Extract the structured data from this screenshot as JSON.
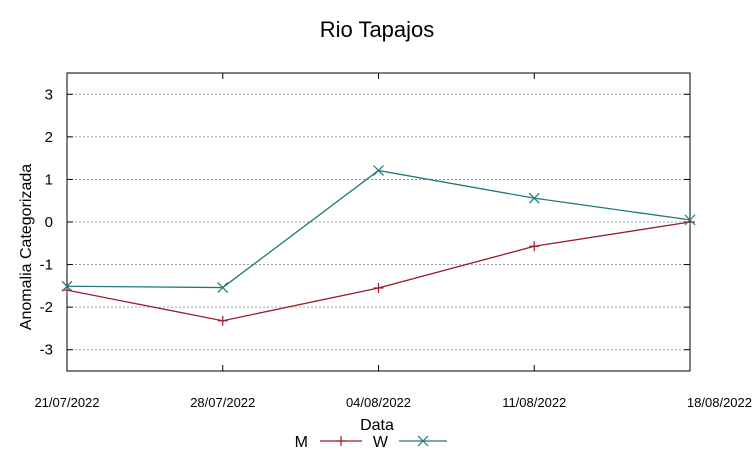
{
  "chart_data": {
    "type": "line",
    "title": "Rio Tapajos",
    "xlabel": "Data",
    "ylabel": "Anomalia Categorizada",
    "categories": [
      "21/07/2022",
      "28/07/2022",
      "04/08/2022",
      "11/08/2022",
      "18/08/2022"
    ],
    "ylim": [
      -3.5,
      3.5
    ],
    "yticks": [
      "3",
      "2",
      "1",
      "0",
      "-1",
      "-2",
      "-3"
    ],
    "grid": true,
    "legend_position": "bottom",
    "series": [
      {
        "name": "M",
        "values": [
          -1.6,
          -2.32,
          -1.55,
          -0.57,
          0.0
        ],
        "color": "#9b1c2a",
        "marker": "plus"
      },
      {
        "name": "W",
        "values": [
          -1.51,
          -1.54,
          1.21,
          0.56,
          0.05
        ],
        "color": "#1f7a7a",
        "marker": "cross"
      }
    ]
  }
}
